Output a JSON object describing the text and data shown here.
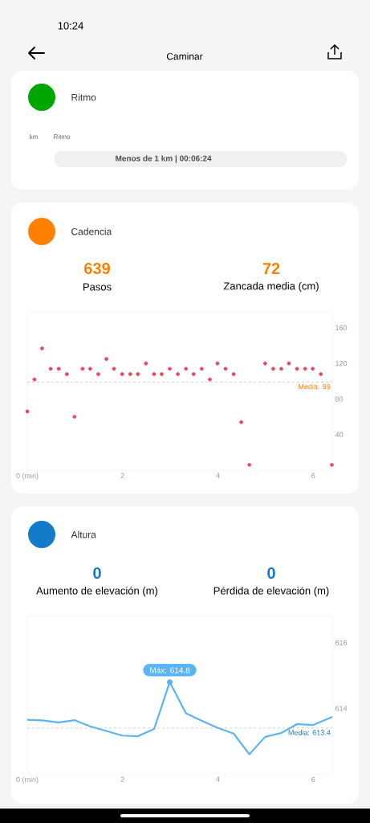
{
  "chart_data": [
    {
      "type": "other",
      "title": "Caminar",
      "annotations": [
        "10:24"
      ]
    },
    {
      "type": "other",
      "title": "Ritmo",
      "annotations": [
        "km",
        "Ritmo",
        "Menos de 1 km | 00:06:24"
      ]
    },
    {
      "type": "scatter",
      "title": "Cadencia",
      "annotations": [
        "639",
        "Pasos",
        "72",
        "Zancada media (cm)"
      ],
      "x": [
        0,
        0.15,
        0.31,
        0.49,
        0.66,
        0.83,
        0.99,
        1.16,
        1.32,
        1.49,
        1.66,
        1.82,
        1.99,
        2.16,
        2.32,
        2.49,
        2.66,
        2.82,
        2.99,
        3.16,
        3.33,
        3.49,
        3.66,
        3.83,
        3.99,
        4.16,
        4.33,
        4.49,
        4.66,
        4.99,
        5.16,
        5.33,
        5.49,
        5.66,
        5.83,
        5.99,
        6.16,
        6.39
      ],
      "values": [
        66,
        102,
        137,
        114,
        114,
        108,
        60,
        114,
        114,
        108,
        125,
        114,
        108,
        108,
        108,
        120,
        108,
        108,
        114,
        108,
        114,
        108,
        114,
        102,
        120,
        114,
        108,
        54,
        6,
        120,
        114,
        114,
        120,
        114,
        114,
        114,
        108,
        6
      ],
      "color": "#e8485c",
      "marker": "circle",
      "xlim": [
        0,
        6.4
      ],
      "xticks": [
        {
          "value": 0,
          "label": "0 (min)"
        },
        2,
        4,
        6
      ],
      "ylim": [
        0,
        178
      ],
      "yticks": [
        40,
        80,
        120,
        160
      ],
      "ref_lines": [
        {
          "axis": "y",
          "value": 99,
          "label": "Media: 99",
          "line_style": "dashed"
        }
      ]
    },
    {
      "type": "line",
      "title": "Altura",
      "annotations": [
        "0",
        "Aumento de elevación (m)",
        "0",
        "Pérdida de elevación (m)",
        {
          "text": "Máx: 614.8",
          "x": 2.99,
          "y": 614.8
        }
      ],
      "x": [
        0,
        0.32,
        0.66,
        0.99,
        1.32,
        1.66,
        1.99,
        2.32,
        2.66,
        2.99,
        3.33,
        3.66,
        3.99,
        4.33,
        4.66,
        4.99,
        5.33,
        5.66,
        5.99,
        6.4
      ],
      "values": [
        613.65,
        613.63,
        613.57,
        613.64,
        613.45,
        613.31,
        613.17,
        613.15,
        613.37,
        614.8,
        613.85,
        613.62,
        613.41,
        613.23,
        612.6,
        613.13,
        613.25,
        613.52,
        613.49,
        613.74
      ],
      "color": "#5ab4f5",
      "line_style": "solid",
      "xlim": [
        0,
        6.4
      ],
      "xticks": [
        {
          "value": 0,
          "label": "0 (min)"
        },
        2,
        4,
        6
      ],
      "ylim": [
        612,
        616.8
      ],
      "yticks": [
        614,
        616
      ],
      "ref_lines": [
        {
          "axis": "y",
          "value": 613.4,
          "label": "Media: 613.4",
          "line_style": "dashed"
        }
      ]
    }
  ]
}
